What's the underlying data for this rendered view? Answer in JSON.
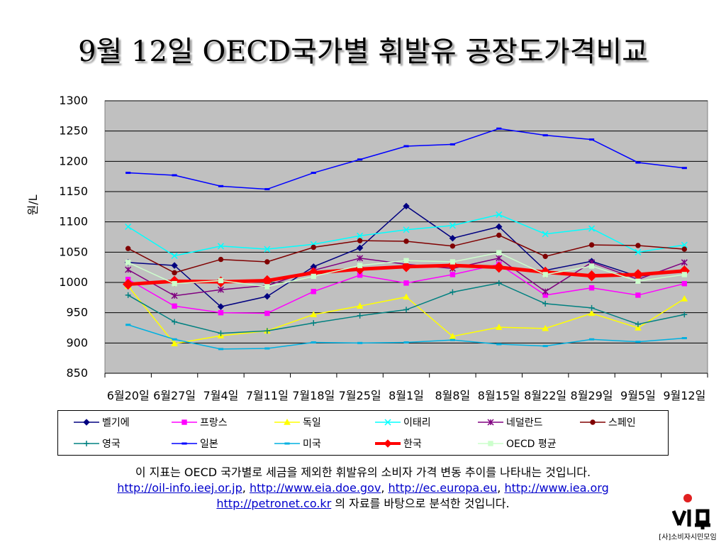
{
  "slide": {
    "title": "9월 12일 OECD국가별 휘발유 공장도가격비교",
    "note_line1": "이 지표는 OECD 국가별로 세금을 제외한 휘발유의 소비자 가격 변동 추이를 나타내는 것입니다.",
    "links": [
      "http://oil-info.ieej.or.jp",
      "http://www.eia.doe.gov",
      "http://ec.europa.eu",
      "http://www.iea.org"
    ],
    "link_sep": ", ",
    "link_last": "http://petronet.co.kr",
    "note_line3_suffix": " 의 자료를 바탕으로 분석한 것입니다.",
    "logo_text": "[사]소비자시민모임",
    "logo_mark": "소시모"
  },
  "chart_data": {
    "type": "line",
    "ylabel": "원/L",
    "xlabel": "",
    "ylim": [
      850,
      1300
    ],
    "ytick_step": 50,
    "grid": "horizontal",
    "legend_position": "bottom",
    "categories": [
      "6월20일",
      "6월27일",
      "7월4일",
      "7월11일",
      "7월18일",
      "7월25일",
      "8월1일",
      "8월8일",
      "8월15일",
      "8월22일",
      "8월29일",
      "9월5일",
      "9월12일"
    ],
    "series": [
      {
        "name": "벨기에",
        "color": "#000080",
        "marker": "diamond",
        "values": [
          1033,
          1028,
          960,
          977,
          1026,
          1057,
          1126,
          1073,
          1092,
          1020,
          1035,
          1010,
          1020
        ]
      },
      {
        "name": "프랑스",
        "color": "#ff00ff",
        "marker": "square",
        "values": [
          1005,
          961,
          950,
          949,
          985,
          1012,
          999,
          1013,
          1030,
          979,
          991,
          979,
          998
        ]
      },
      {
        "name": "독일",
        "color": "#ffff00",
        "marker": "triangle",
        "values": [
          994,
          899,
          912,
          920,
          947,
          961,
          976,
          911,
          926,
          924,
          949,
          925,
          973
        ]
      },
      {
        "name": "이태리",
        "color": "#00ffff",
        "marker": "x",
        "values": [
          1092,
          1044,
          1060,
          1055,
          1063,
          1077,
          1087,
          1094,
          1112,
          1080,
          1089,
          1050,
          1062
        ]
      },
      {
        "name": "네덜란드",
        "color": "#800080",
        "marker": "star",
        "values": [
          1021,
          978,
          988,
          995,
          1020,
          1040,
          1030,
          1023,
          1040,
          985,
          1033,
          1005,
          1033
        ]
      },
      {
        "name": "스페인",
        "color": "#800000",
        "marker": "circle",
        "values": [
          1056,
          1016,
          1038,
          1034,
          1058,
          1069,
          1068,
          1060,
          1078,
          1043,
          1062,
          1061,
          1055
        ]
      },
      {
        "name": "영국",
        "color": "#008080",
        "marker": "plus",
        "values": [
          979,
          935,
          916,
          920,
          933,
          945,
          955,
          984,
          999,
          965,
          958,
          931,
          947
        ]
      },
      {
        "name": "일본",
        "color": "#0000ff",
        "marker": "dash",
        "values": [
          1181,
          1177,
          1159,
          1154,
          1181,
          1203,
          1225,
          1228,
          1254,
          1243,
          1236,
          1198,
          1189
        ]
      },
      {
        "name": "미국",
        "color": "#00b0e0",
        "marker": "dash",
        "values": [
          930,
          906,
          890,
          891,
          901,
          900,
          901,
          905,
          898,
          895,
          906,
          902,
          908
        ]
      },
      {
        "name": "한국",
        "color": "#ff0000",
        "marker": "diamond",
        "bold": true,
        "values": [
          997,
          1002,
          1001,
          1003,
          1016,
          1022,
          1026,
          1028,
          1025,
          1017,
          1011,
          1013,
          1019
        ]
      },
      {
        "name": "OECD 평균",
        "color": "#ccffcc",
        "marker": "square",
        "values": [
          1033,
          998,
          1003,
          993,
          1010,
          1028,
          1036,
          1034,
          1049,
          1013,
          1027,
          1002,
          1013
        ]
      }
    ]
  }
}
